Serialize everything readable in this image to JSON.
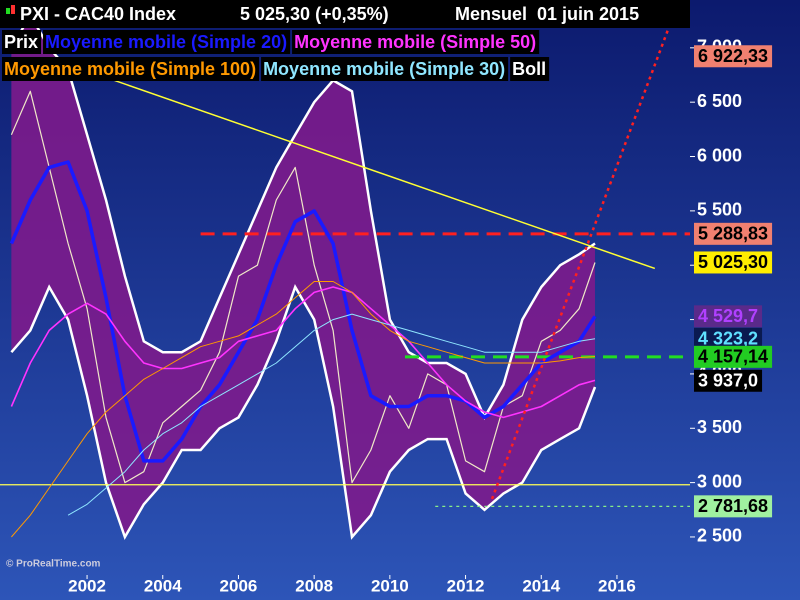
{
  "chart_data": {
    "type": "line",
    "title": "PXI - CAC40 Index",
    "quote": "5 025,30 (+0,35%)",
    "period": "Mensuel  01 juin 2015",
    "watermark": "© ProRealTime.com",
    "x": [
      2000,
      2000.5,
      2001,
      2001.5,
      2002,
      2002.5,
      2003,
      2003.5,
      2004,
      2004.5,
      2005,
      2005.5,
      2006,
      2006.5,
      2007,
      2007.5,
      2008,
      2008.5,
      2009,
      2009.5,
      2010,
      2010.5,
      2011,
      2011.5,
      2012,
      2012.5,
      2013,
      2013.5,
      2014,
      2014.5,
      2015,
      2015.42
    ],
    "series": [
      {
        "name": "Prix",
        "color": "#f0e8c8",
        "width": 1.2,
        "values": [
          6200,
          6600,
          5900,
          5200,
          4600,
          3600,
          3000,
          3100,
          3550,
          3700,
          3850,
          4200,
          4900,
          5000,
          5600,
          5900,
          5000,
          4400,
          3000,
          3300,
          3800,
          3500,
          4000,
          3900,
          3200,
          3100,
          3700,
          3800,
          4300,
          4400,
          4600,
          5025
        ]
      },
      {
        "name": "Moyenne mobile (Simple 20)",
        "color": "#1a1aff",
        "width": 3.5,
        "values": [
          5200,
          5600,
          5900,
          5950,
          5500,
          4700,
          3800,
          3200,
          3200,
          3400,
          3700,
          3900,
          4200,
          4500,
          5000,
          5400,
          5500,
          5200,
          4400,
          3800,
          3700,
          3700,
          3800,
          3800,
          3750,
          3600,
          3700,
          3900,
          4100,
          4200,
          4300,
          4530
        ]
      },
      {
        "name": "Moyenne mobile (Simple 50)",
        "color": "#ff33ff",
        "width": 1.6,
        "values": [
          3700,
          4100,
          4400,
          4550,
          4650,
          4550,
          4300,
          4100,
          4050,
          4050,
          4100,
          4150,
          4300,
          4350,
          4400,
          4600,
          4750,
          4800,
          4750,
          4600,
          4450,
          4300,
          4100,
          3900,
          3750,
          3650,
          3600,
          3650,
          3700,
          3800,
          3900,
          3940
        ]
      },
      {
        "name": "Moyenne mobile (Simple 100)",
        "color": "#ff9900",
        "width": 1,
        "values": [
          2500,
          2700,
          2950,
          3200,
          3450,
          3650,
          3800,
          3950,
          4050,
          4150,
          4250,
          4300,
          4350,
          4450,
          4550,
          4700,
          4850,
          4850,
          4750,
          4550,
          4400,
          4300,
          4250,
          4200,
          4150,
          4100,
          4100,
          4100,
          4100,
          4120,
          4150,
          4160
        ]
      },
      {
        "name": "Moyenne mobile (Simple 30)",
        "color": "#8fe6ff",
        "width": 1,
        "values": [
          null,
          null,
          null,
          2700,
          2800,
          2950,
          3100,
          3300,
          3450,
          3550,
          3700,
          3800,
          3900,
          4000,
          4100,
          4250,
          4400,
          4500,
          4550,
          4500,
          4450,
          4400,
          4350,
          4300,
          4250,
          4200,
          4200,
          4200,
          4200,
          4250,
          4300,
          4323
        ]
      }
    ],
    "band": {
      "name": "Boll",
      "color": "#7d1b8c",
      "edge": "#ffffff",
      "upper": [
        7000,
        7300,
        7000,
        6800,
        6200,
        5600,
        4900,
        4300,
        4200,
        4200,
        4300,
        4700,
        5100,
        5500,
        5900,
        6200,
        6500,
        6700,
        6600,
        5500,
        4500,
        4200,
        4100,
        4100,
        4000,
        3600,
        3900,
        4500,
        4800,
        5000,
        5100,
        5200
      ],
      "lower": [
        4200,
        4400,
        4800,
        4500,
        3800,
        3000,
        2500,
        2800,
        3000,
        3300,
        3300,
        3500,
        3600,
        3900,
        4300,
        4800,
        4500,
        3700,
        2500,
        2700,
        3100,
        3300,
        3400,
        3400,
        2900,
        2750,
        2900,
        3000,
        3300,
        3400,
        3500,
        3880
      ]
    },
    "levels": [
      {
        "value": 5288.83,
        "color": "#ff2020",
        "from": 2005,
        "style": "dashed"
      },
      {
        "value": 4157.14,
        "color": "#22dd22",
        "from": 2010.4,
        "style": "dashed"
      },
      {
        "value": 2980,
        "color": "#ffff55",
        "from": 1999.7,
        "style": "solid"
      },
      {
        "value": 2781.68,
        "color": "#88ee88",
        "from": 2011.2,
        "style": "dotted"
      }
    ],
    "trendlines": [
      {
        "x": [
          2001.9,
          2017
        ],
        "y": [
          6800,
          4970
        ],
        "color": "#ffff33",
        "style": "solid"
      },
      {
        "x": [
          2012.7,
          2017.6
        ],
        "y": [
          2850,
          7400
        ],
        "color": "#ff2020",
        "style": "dotted"
      }
    ],
    "price_labels": [
      {
        "value": 6922.33,
        "label": "6 922,33",
        "bg": "#f08070",
        "fg": "#000000"
      },
      {
        "value": 5288.83,
        "label": "5 288,83",
        "bg": "#f08070",
        "fg": "#000000"
      },
      {
        "value": 5025.3,
        "label": "5 025,30",
        "bg": "#ffee00",
        "fg": "#000000"
      },
      {
        "value": 4529.7,
        "label": "4 529,7",
        "bg": "#5a2a8a",
        "fg": "#b040ff"
      },
      {
        "value": 4323.2,
        "label": "4 323,2",
        "bg": "#0a1a50",
        "fg": "#60e0ff"
      },
      {
        "value": 4157.14,
        "label": "4 157,14",
        "bg": "#22cc22",
        "fg": "#000000"
      },
      {
        "value": 3937.0,
        "label": "3 937,0",
        "bg": "#000000",
        "fg": "#ffffff"
      },
      {
        "value": 2781.68,
        "label": "2 781,68",
        "bg": "#a0f0a0",
        "fg": "#000000"
      }
    ],
    "xlim": [
      1999.7,
      2017.93
    ],
    "ylim": [
      2150,
      7440
    ],
    "xticks": [
      2002,
      2004,
      2006,
      2008,
      2010,
      2012,
      2014,
      2016
    ],
    "yticks": [
      {
        "value": 2500,
        "label": "2 500"
      },
      {
        "value": 3000,
        "label": "3 000"
      },
      {
        "value": 3500,
        "label": "3 500"
      },
      {
        "value": 4000,
        "label": "4 000"
      },
      {
        "value": 4500,
        "label": "4 500"
      },
      {
        "value": 5000,
        "label": "5 000"
      },
      {
        "value": 5500,
        "label": "5 500"
      },
      {
        "value": 6000,
        "label": "6 000"
      },
      {
        "value": 6500,
        "label": "6 500"
      },
      {
        "value": 7000,
        "label": "7 000"
      }
    ]
  }
}
